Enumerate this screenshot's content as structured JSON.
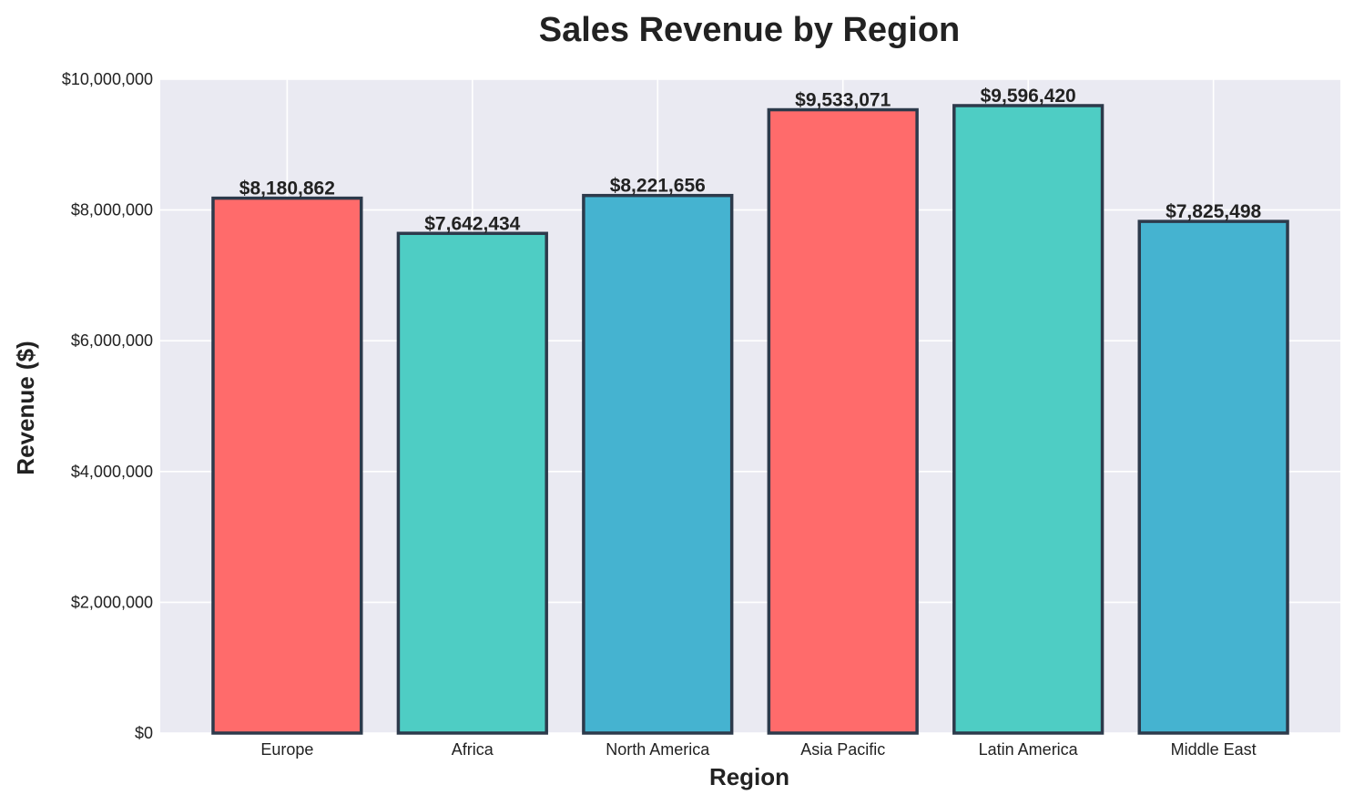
{
  "chart_data": {
    "type": "bar",
    "title": "Sales Revenue by Region",
    "xlabel": "Region",
    "ylabel": "Revenue ($)",
    "categories": [
      "Europe",
      "Africa",
      "North America",
      "Asia Pacific",
      "Latin America",
      "Middle East"
    ],
    "values": [
      8180862,
      7642434,
      8221656,
      9533071,
      9596420,
      7825498
    ],
    "value_labels": [
      "$8,180,862",
      "$7,642,434",
      "$8,221,656",
      "$9,533,071",
      "$9,596,420",
      "$7,825,498"
    ],
    "bar_colors": [
      "#ff6b6b",
      "#4ecdc4",
      "#45b3d0",
      "#ff6b6b",
      "#4ecdc4",
      "#45b3d0"
    ],
    "bar_edge_color": "#2d3a4b",
    "plot_background": "#eaeaf2",
    "ylim": [
      0,
      10000000
    ],
    "yticks": [
      0,
      2000000,
      4000000,
      6000000,
      8000000,
      10000000
    ],
    "ytick_labels": [
      "$0",
      "$2,000,000",
      "$4,000,000",
      "$6,000,000",
      "$8,000,000",
      "$10,000,000"
    ],
    "grid": true
  }
}
